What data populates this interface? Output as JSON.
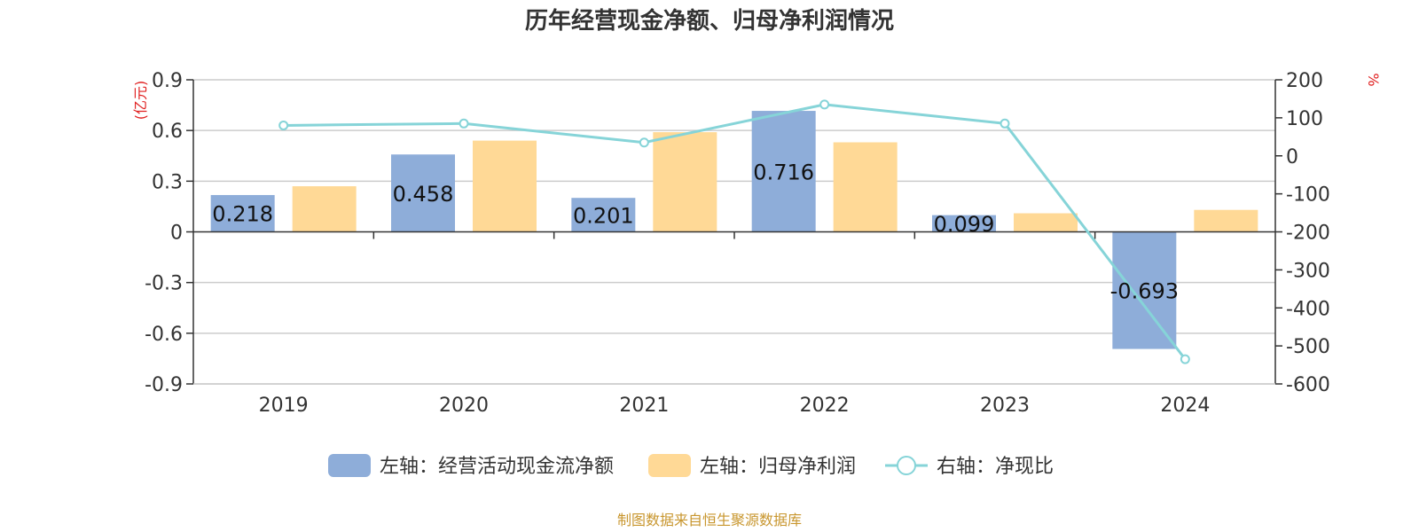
{
  "chart_data": {
    "title": "历年经营现金净额、归母净利润情况",
    "type": "bar",
    "categories": [
      "2019",
      "2020",
      "2021",
      "2022",
      "2023",
      "2024"
    ],
    "left_axis": {
      "unit": "(亿元)",
      "ylim": [
        -0.9,
        0.9
      ],
      "ticks": [
        0.9,
        0.6,
        0.3,
        0,
        -0.3,
        -0.6,
        -0.9
      ],
      "tick_labels": [
        "0.9",
        "0.6",
        "0.3",
        "0",
        "-0.3",
        "-0.6",
        "-0.9"
      ]
    },
    "right_axis": {
      "unit": "%",
      "ylim": [
        -600,
        200
      ],
      "ticks": [
        200,
        100,
        0,
        -100,
        -200,
        -300,
        -400,
        -500,
        -600
      ],
      "tick_labels": [
        "200",
        "100",
        "0",
        "-100",
        "-200",
        "-300",
        "-400",
        "-500",
        "-600"
      ]
    },
    "series": [
      {
        "name": "左轴：经营活动现金流净额",
        "type": "bar",
        "axis": "left",
        "color": "#8eadd9",
        "values": [
          0.218,
          0.458,
          0.201,
          0.716,
          0.099,
          -0.693
        ],
        "labels": [
          "0.218",
          "0.458",
          "0.201",
          "0.716",
          "0.099",
          "-0.693"
        ]
      },
      {
        "name": "左轴：归母净利润",
        "type": "bar",
        "axis": "left",
        "color": "#ffd996",
        "values": [
          0.27,
          0.54,
          0.59,
          0.53,
          0.11,
          0.13
        ]
      },
      {
        "name": "右轴：净现比",
        "type": "line",
        "axis": "right",
        "color": "#86d4d8",
        "values": [
          80,
          85,
          35,
          135,
          85,
          -535
        ]
      }
    ],
    "legend": "bottom",
    "grid": true
  },
  "footer": {
    "source": "制图数据来自恒生聚源数据库"
  }
}
